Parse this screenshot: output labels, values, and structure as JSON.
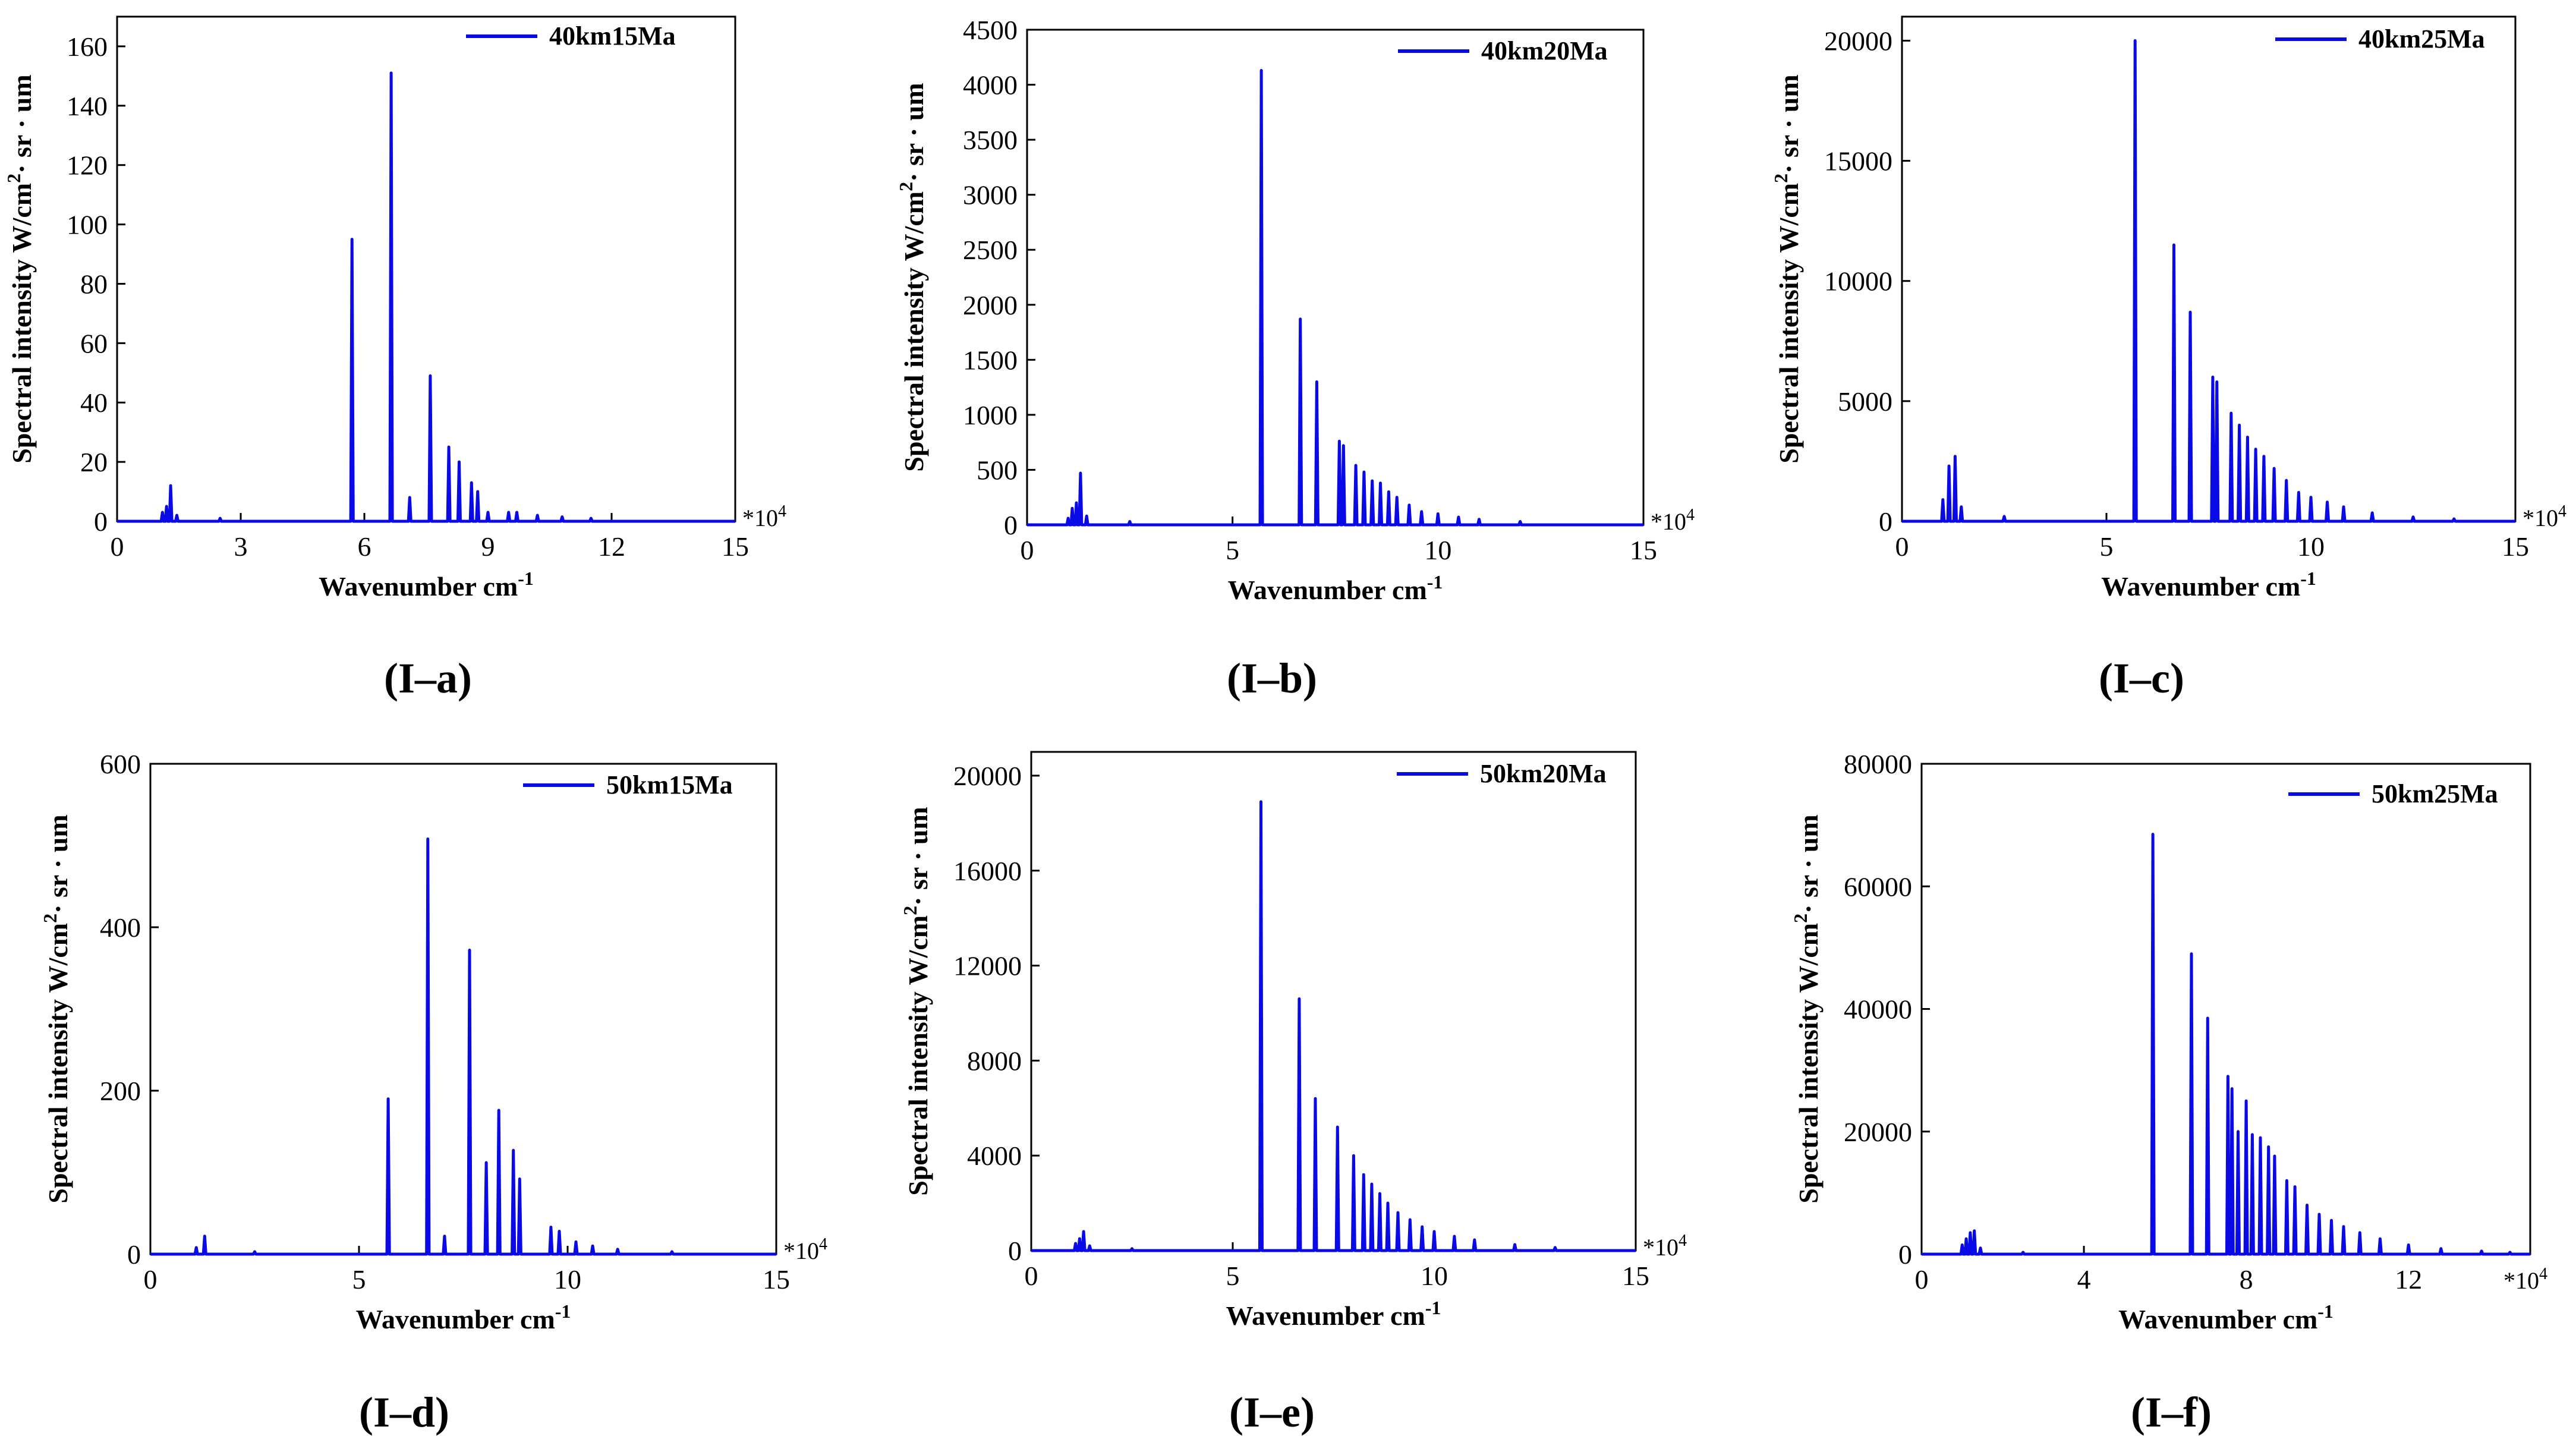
{
  "series_color": "#0a0ae6",
  "chart_data": [
    {
      "type": "line",
      "id": "I-a",
      "caption": "(I–a)",
      "series_name": "40km15Ma",
      "xlabel": "Wavenumber cm-1",
      "ylabel": "Spectral intensity  W/cm2· sr · um",
      "x_multiplier": "*104",
      "xlim": [
        0,
        15
      ],
      "ylim": [
        0,
        170
      ],
      "xticks": [
        0,
        3,
        6,
        9,
        12,
        15
      ],
      "yticks": [
        0,
        20,
        40,
        60,
        80,
        100,
        120,
        140,
        160
      ],
      "peaks": [
        [
          1.1,
          3
        ],
        [
          1.2,
          5
        ],
        [
          1.3,
          12
        ],
        [
          1.45,
          2
        ],
        [
          2.5,
          1
        ],
        [
          5.7,
          95
        ],
        [
          6.65,
          151
        ],
        [
          7.1,
          8
        ],
        [
          7.6,
          49
        ],
        [
          8.05,
          25
        ],
        [
          8.3,
          20
        ],
        [
          8.6,
          13
        ],
        [
          8.75,
          10
        ],
        [
          9.0,
          3
        ],
        [
          9.5,
          3
        ],
        [
          9.7,
          3
        ],
        [
          10.2,
          2
        ],
        [
          10.8,
          1.5
        ],
        [
          11.5,
          1
        ]
      ]
    },
    {
      "type": "line",
      "id": "I-b",
      "caption": "(I–b)",
      "series_name": "40km20Ma",
      "xlabel": "Wavenumber cm-1",
      "ylabel": "Spectral intensity  W/cm2· sr · um",
      "x_multiplier": "*104",
      "xlim": [
        0,
        15
      ],
      "ylim": [
        0,
        4500
      ],
      "xticks": [
        0,
        5,
        10,
        15
      ],
      "yticks": [
        0,
        500,
        1000,
        1500,
        2000,
        2500,
        3000,
        3500,
        4000,
        4500
      ],
      "peaks": [
        [
          1.0,
          60
        ],
        [
          1.1,
          150
        ],
        [
          1.2,
          200
        ],
        [
          1.3,
          470
        ],
        [
          1.45,
          80
        ],
        [
          2.5,
          30
        ],
        [
          5.7,
          4130
        ],
        [
          6.65,
          1870
        ],
        [
          7.05,
          1300
        ],
        [
          7.6,
          760
        ],
        [
          7.7,
          720
        ],
        [
          8.0,
          540
        ],
        [
          8.2,
          480
        ],
        [
          8.4,
          400
        ],
        [
          8.6,
          380
        ],
        [
          8.8,
          300
        ],
        [
          9.0,
          250
        ],
        [
          9.3,
          180
        ],
        [
          9.6,
          120
        ],
        [
          10.0,
          100
        ],
        [
          10.5,
          70
        ],
        [
          11.0,
          50
        ],
        [
          12.0,
          30
        ]
      ]
    },
    {
      "type": "line",
      "id": "I-c",
      "caption": "(I–c)",
      "series_name": "40km25Ma",
      "xlabel": "Wavenumber cm-1",
      "ylabel": "Spectral intensity  W/cm2· sr · um",
      "x_multiplier": "*104",
      "xlim": [
        0,
        15
      ],
      "ylim": [
        0,
        21000
      ],
      "xticks": [
        0,
        5,
        10,
        15
      ],
      "yticks": [
        0,
        5000,
        10000,
        15000,
        20000
      ],
      "peaks": [
        [
          1.0,
          900
        ],
        [
          1.15,
          2300
        ],
        [
          1.3,
          2700
        ],
        [
          1.45,
          600
        ],
        [
          2.5,
          200
        ],
        [
          5.7,
          20000
        ],
        [
          6.65,
          11500
        ],
        [
          7.05,
          8700
        ],
        [
          7.6,
          6000
        ],
        [
          7.7,
          5800
        ],
        [
          8.05,
          4500
        ],
        [
          8.25,
          4000
        ],
        [
          8.45,
          3500
        ],
        [
          8.65,
          3000
        ],
        [
          8.85,
          2700
        ],
        [
          9.1,
          2200
        ],
        [
          9.4,
          1700
        ],
        [
          9.7,
          1200
        ],
        [
          10.0,
          1000
        ],
        [
          10.4,
          800
        ],
        [
          10.8,
          600
        ],
        [
          11.5,
          350
        ],
        [
          12.5,
          180
        ],
        [
          13.5,
          100
        ]
      ]
    },
    {
      "type": "line",
      "id": "I-d",
      "caption": "(I–d)",
      "series_name": "50km15Ma",
      "xlabel": "Wavenumber cm-1",
      "ylabel": "Spectral intensity  W/cm2· sr · um",
      "x_multiplier": "*104",
      "xlim": [
        0,
        15
      ],
      "ylim": [
        0,
        600
      ],
      "xticks": [
        0,
        5,
        10,
        15
      ],
      "yticks": [
        0,
        200,
        400,
        600
      ],
      "peaks": [
        [
          1.1,
          8
        ],
        [
          1.3,
          22
        ],
        [
          2.5,
          3
        ],
        [
          5.7,
          190
        ],
        [
          6.65,
          508
        ],
        [
          7.05,
          22
        ],
        [
          7.65,
          372
        ],
        [
          8.05,
          112
        ],
        [
          8.35,
          176
        ],
        [
          8.7,
          127
        ],
        [
          8.85,
          92
        ],
        [
          9.6,
          33
        ],
        [
          9.8,
          28
        ],
        [
          10.2,
          15
        ],
        [
          10.6,
          10
        ],
        [
          11.2,
          6
        ],
        [
          12.5,
          3
        ]
      ]
    },
    {
      "type": "line",
      "id": "I-e",
      "caption": "(I–e)",
      "series_name": "50km20Ma",
      "xlabel": "Wavenumber cm-1",
      "ylabel": "Spectral intensity  W/cm2· sr · um",
      "x_multiplier": "*104",
      "xlim": [
        0,
        15
      ],
      "ylim": [
        0,
        21000
      ],
      "xticks": [
        0,
        5,
        10,
        15
      ],
      "yticks": [
        0,
        4000,
        8000,
        12000,
        16000,
        20000
      ],
      "peaks": [
        [
          1.1,
          300
        ],
        [
          1.2,
          500
        ],
        [
          1.3,
          800
        ],
        [
          1.45,
          200
        ],
        [
          2.5,
          80
        ],
        [
          5.7,
          18900
        ],
        [
          6.65,
          10600
        ],
        [
          7.05,
          6400
        ],
        [
          7.6,
          5200
        ],
        [
          8.0,
          4000
        ],
        [
          8.25,
          3200
        ],
        [
          8.45,
          2800
        ],
        [
          8.65,
          2400
        ],
        [
          8.85,
          2000
        ],
        [
          9.1,
          1600
        ],
        [
          9.4,
          1300
        ],
        [
          9.7,
          1000
        ],
        [
          10.0,
          800
        ],
        [
          10.5,
          600
        ],
        [
          11.0,
          450
        ],
        [
          12.0,
          250
        ],
        [
          13.0,
          130
        ]
      ]
    },
    {
      "type": "line",
      "id": "I-f",
      "caption": "(I–f)",
      "series_name": "50km25Ma",
      "xlabel": "Wavenumber cm-1",
      "ylabel": "Spectral intensity  W/cm2· sr · um",
      "x_multiplier": "*104",
      "xlim": [
        0,
        15
      ],
      "ylim": [
        0,
        80000
      ],
      "xticks": [
        0,
        4,
        8,
        12
      ],
      "yticks": [
        0,
        20000,
        40000,
        60000,
        80000
      ],
      "peaks": [
        [
          1.0,
          1500
        ],
        [
          1.1,
          2500
        ],
        [
          1.2,
          3500
        ],
        [
          1.3,
          3800
        ],
        [
          1.45,
          1000
        ],
        [
          2.5,
          300
        ],
        [
          5.7,
          68500
        ],
        [
          6.65,
          49000
        ],
        [
          7.05,
          38500
        ],
        [
          7.55,
          29000
        ],
        [
          7.65,
          27000
        ],
        [
          7.8,
          20000
        ],
        [
          8.0,
          25000
        ],
        [
          8.15,
          19500
        ],
        [
          8.35,
          19000
        ],
        [
          8.55,
          17500
        ],
        [
          8.7,
          16000
        ],
        [
          9.0,
          12000
        ],
        [
          9.2,
          11000
        ],
        [
          9.5,
          8000
        ],
        [
          9.8,
          6500
        ],
        [
          10.1,
          5500
        ],
        [
          10.4,
          4500
        ],
        [
          10.8,
          3500
        ],
        [
          11.3,
          2500
        ],
        [
          12.0,
          1500
        ],
        [
          12.8,
          900
        ],
        [
          13.8,
          500
        ],
        [
          14.5,
          300
        ]
      ]
    }
  ]
}
